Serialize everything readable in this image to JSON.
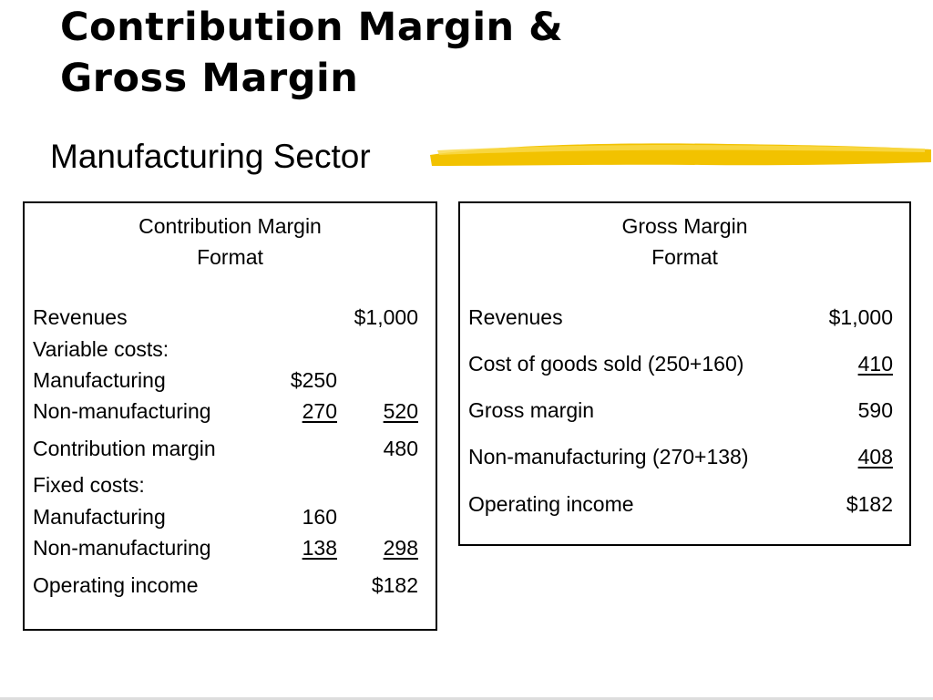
{
  "slide": {
    "title_line1": "Contribution Margin &",
    "title_line2": "Gross Margin",
    "subtitle": "Manufacturing Sector",
    "accent_color": "#f2c200"
  },
  "contribution_format": {
    "heading_line1": "Contribution Margin",
    "heading_line2": "Format",
    "revenues": {
      "label": "Revenues",
      "total": "$1,000"
    },
    "variable_costs_label": "Variable costs:",
    "var_manufacturing": {
      "label": "Manufacturing",
      "amount": "$250"
    },
    "var_nonmanufacturing": {
      "label": "Non-manufacturing",
      "amount": "270",
      "total": "520"
    },
    "contribution_margin": {
      "label": "Contribution margin",
      "total": "480"
    },
    "fixed_costs_label": "Fixed costs:",
    "fixed_manufacturing": {
      "label": "Manufacturing",
      "amount": "160"
    },
    "fixed_nonmanufacturing": {
      "label": "Non-manufacturing",
      "amount": "138",
      "total": "298"
    },
    "operating_income": {
      "label": "Operating income",
      "total": "$182"
    }
  },
  "gross_format": {
    "heading_line1": "Gross Margin",
    "heading_line2": "Format",
    "revenues": {
      "label": "Revenues",
      "total": "$1,000"
    },
    "cogs": {
      "label": "Cost of goods sold (250+160)",
      "total": "410"
    },
    "gross_margin": {
      "label": "Gross margin",
      "total": "590"
    },
    "nonmanufacturing": {
      "label": "Non-manufacturing (270+138)",
      "total": "408"
    },
    "operating_income": {
      "label": "Operating income",
      "total": "$182"
    }
  }
}
